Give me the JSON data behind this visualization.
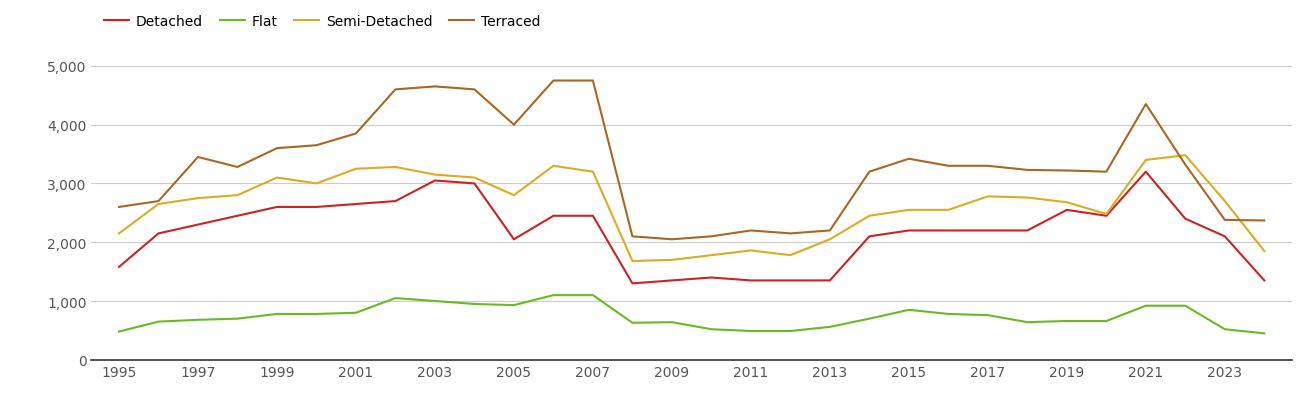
{
  "years": [
    1995,
    1996,
    1997,
    1998,
    1999,
    2000,
    2001,
    2002,
    2003,
    2004,
    2005,
    2006,
    2007,
    2008,
    2009,
    2010,
    2011,
    2012,
    2013,
    2014,
    2015,
    2016,
    2017,
    2018,
    2019,
    2020,
    2021,
    2022,
    2023,
    2024
  ],
  "detached": [
    1580,
    2150,
    2300,
    2450,
    2600,
    2600,
    2650,
    2700,
    3050,
    3000,
    2050,
    2450,
    2450,
    1300,
    1350,
    1400,
    1350,
    1350,
    1350,
    2100,
    2200,
    2200,
    2200,
    2200,
    2550,
    2450,
    3200,
    2400,
    2100,
    1350
  ],
  "flat": [
    480,
    650,
    680,
    700,
    780,
    780,
    800,
    1050,
    1000,
    950,
    930,
    1100,
    1100,
    630,
    640,
    520,
    490,
    490,
    560,
    700,
    850,
    780,
    760,
    640,
    660,
    660,
    920,
    920,
    520,
    450
  ],
  "semi_detached": [
    2150,
    2650,
    2750,
    2800,
    3100,
    3000,
    3250,
    3280,
    3150,
    3100,
    2800,
    3300,
    3200,
    1680,
    1700,
    1780,
    1860,
    1780,
    2050,
    2450,
    2550,
    2550,
    2780,
    2760,
    2680,
    2480,
    3400,
    3480,
    2700,
    1850
  ],
  "terraced": [
    2600,
    2700,
    3450,
    3280,
    3600,
    3650,
    3850,
    4600,
    4650,
    4600,
    4000,
    4750,
    4750,
    2100,
    2050,
    2100,
    2200,
    2150,
    2200,
    3200,
    3420,
    3300,
    3300,
    3230,
    3220,
    3200,
    4350,
    3320,
    2380,
    2370
  ],
  "colors": {
    "detached": "#cc2222",
    "flat": "#66bb22",
    "semi_detached": "#ddaa22",
    "terraced": "#aa6622"
  },
  "legend_labels": [
    "Detached",
    "Flat",
    "Semi-Detached",
    "Terraced"
  ],
  "ylim": [
    0,
    5300
  ],
  "yticks": [
    0,
    1000,
    2000,
    3000,
    4000,
    5000
  ],
  "ytick_labels": [
    "0",
    "1,000",
    "2,000",
    "3,000",
    "4,000",
    "5,000"
  ],
  "xticks": [
    1995,
    1997,
    1999,
    2001,
    2003,
    2005,
    2007,
    2009,
    2011,
    2013,
    2015,
    2017,
    2019,
    2021,
    2023
  ],
  "xlim_left": 1994.3,
  "xlim_right": 2024.7,
  "background_color": "#ffffff",
  "grid_color": "#cccccc",
  "line_width": 1.5,
  "tick_fontsize": 10,
  "tick_color": "#555555",
  "legend_fontsize": 10
}
